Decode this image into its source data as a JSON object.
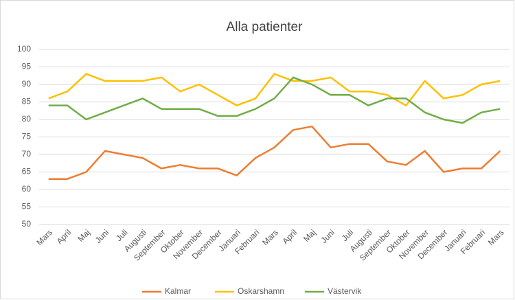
{
  "chart_data": {
    "type": "line",
    "title": "Alla patienter",
    "categories": [
      "Mars",
      "April",
      "Maj",
      "Juni",
      "Juli",
      "Augusti",
      "September",
      "Oktober",
      "November",
      "December",
      "Januari",
      "Februari",
      "Mars",
      "April",
      "Maj",
      "Juni",
      "Juli",
      "Augusti",
      "September",
      "Oktober",
      "November",
      "December",
      "Januari",
      "Februari",
      "Mars"
    ],
    "series": [
      {
        "name": "Kalmar",
        "color": "#ED7D31",
        "values": [
          63,
          63,
          65,
          71,
          70,
          69,
          66,
          67,
          66,
          66,
          64,
          69,
          72,
          77,
          78,
          72,
          73,
          73,
          68,
          67,
          71,
          65,
          66,
          66,
          71
        ]
      },
      {
        "name": "Oskarshamn",
        "color": "#FFC000",
        "values": [
          86,
          88,
          93,
          91,
          91,
          91,
          92,
          88,
          90,
          87,
          84,
          86,
          93,
          91,
          91,
          92,
          88,
          88,
          87,
          84,
          91,
          86,
          87,
          90,
          91
        ]
      },
      {
        "name": "Västervik",
        "color": "#70AD47",
        "values": [
          84,
          84,
          80,
          82,
          84,
          86,
          83,
          83,
          83,
          81,
          81,
          83,
          86,
          92,
          90,
          87,
          87,
          84,
          86,
          86,
          82,
          80,
          79,
          82,
          83
        ]
      }
    ],
    "ylim": [
      50,
      100
    ],
    "yticks": [
      50,
      55,
      60,
      65,
      70,
      75,
      80,
      85,
      90,
      95,
      100
    ],
    "grid": true,
    "legend": "bottom"
  }
}
